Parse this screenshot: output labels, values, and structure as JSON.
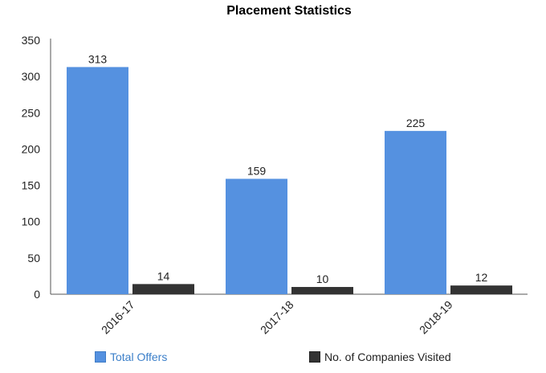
{
  "chart_data": {
    "type": "bar",
    "title": "Placement Statistics",
    "categories": [
      "2016-17",
      "2017-18",
      "2018-19"
    ],
    "series": [
      {
        "name": "Total Offers",
        "values": [
          313,
          159,
          225
        ],
        "color": "#5591e0"
      },
      {
        "name": "No. of Companies Visited",
        "values": [
          14,
          10,
          12
        ],
        "color": "#333333"
      }
    ],
    "ylim": [
      0,
      350
    ],
    "yticks": [
      0,
      50,
      100,
      150,
      200,
      250,
      300,
      350
    ],
    "xlabel": "",
    "ylabel": "",
    "grid": false,
    "data_labels": true,
    "legend_position": "bottom"
  }
}
